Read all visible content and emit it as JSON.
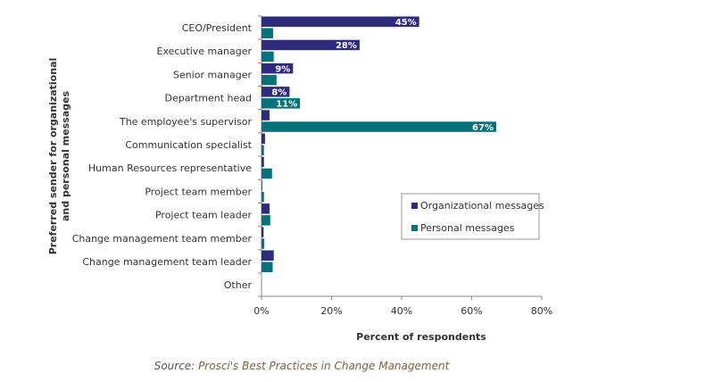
{
  "chart_data": {
    "type": "bar",
    "orientation": "horizontal",
    "categories": [
      "CEO/President",
      "Executive manager",
      "Senior manager",
      "Department head",
      "The employee's supervisor",
      "Communication specialist",
      "Human Resources representative",
      "Project team member",
      "Project team leader",
      "Change management team member",
      "Change management team leader",
      "Other"
    ],
    "series": [
      {
        "name": "Organizational messages",
        "color": "#2e2a7e",
        "values": [
          45,
          28,
          9,
          8,
          2.3,
          1,
          0.7,
          0.2,
          2.3,
          0.6,
          3.5,
          0
        ],
        "labels": [
          "45%",
          "28%",
          "9%",
          "8%",
          "",
          "",
          "",
          "",
          "",
          "",
          "",
          ""
        ]
      },
      {
        "name": "Personal messages",
        "color": "#00737a",
        "values": [
          3.3,
          3.5,
          4.3,
          11,
          67,
          0.7,
          3,
          0.7,
          2.5,
          0.8,
          3.2,
          0
        ],
        "labels": [
          "",
          "",
          "",
          "11%",
          "67%",
          "",
          "",
          "",
          "",
          "",
          "",
          ""
        ]
      }
    ],
    "xlabel": "Percent of respondents",
    "ylabel": "Preferred sender for organizational and personal messages",
    "xlim": [
      0,
      80
    ],
    "xticks": [
      "0%",
      "20%",
      "40%",
      "60%",
      "80%"
    ],
    "grid": false,
    "legend": "right"
  },
  "source": {
    "label": "Source:",
    "title": "Prosci's Best Practices in Change Management"
  }
}
